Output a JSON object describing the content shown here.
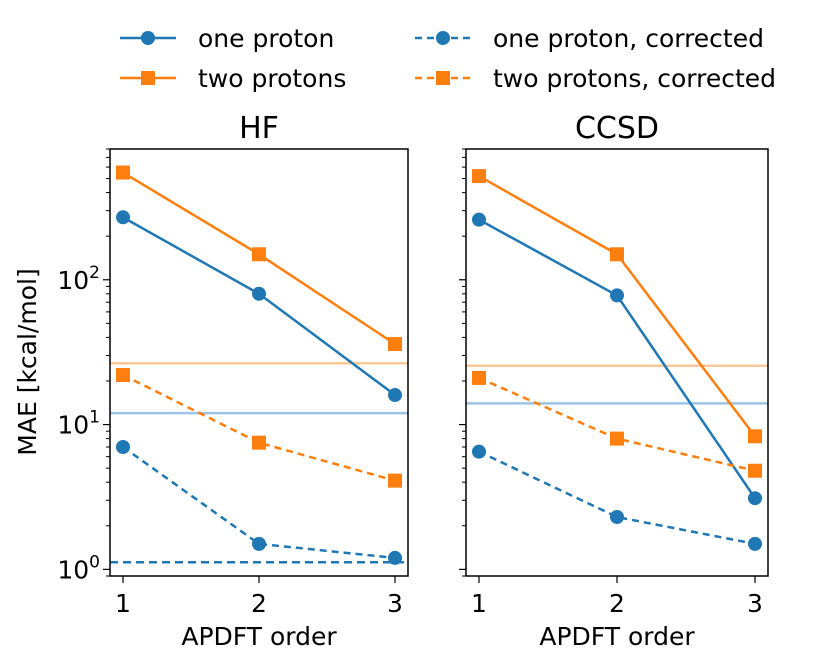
{
  "chart_data": {
    "type": "line",
    "y_scale": "log",
    "ylabel": "MAE [kcal/mol]",
    "xlabel": "APDFT order",
    "x": [
      1,
      2,
      3
    ],
    "x_tick_labels": [
      "1",
      "2",
      "3"
    ],
    "y_ticks": [
      {
        "value": 1,
        "base": "10",
        "exp": "0"
      },
      {
        "value": 10,
        "base": "10",
        "exp": "1"
      },
      {
        "value": 100,
        "base": "10",
        "exp": "2"
      }
    ],
    "ylim": [
      0.9,
      800
    ],
    "legend": {
      "placement": "top",
      "entries": [
        {
          "label": "one proton",
          "series": "one",
          "style": "solid",
          "marker": "circle"
        },
        {
          "label": "two protons",
          "series": "two",
          "style": "solid",
          "marker": "square"
        },
        {
          "label": "one proton, corrected",
          "series": "one",
          "style": "dashed",
          "marker": "circle"
        },
        {
          "label": "two protons, corrected",
          "series": "two",
          "style": "dashed",
          "marker": "square"
        }
      ]
    },
    "colors": {
      "one": "#1f77b4",
      "two": "#ff7f0e",
      "one_ref": "#9dc3e6",
      "two_ref": "#ffc896"
    },
    "panels": [
      {
        "title": "HF",
        "series": [
          {
            "name": "one proton",
            "color_key": "one",
            "style": "solid",
            "marker": "circle",
            "values": [
              270,
              80,
              16
            ]
          },
          {
            "name": "two protons",
            "color_key": "two",
            "style": "solid",
            "marker": "square",
            "values": [
              550,
              150,
              36
            ]
          },
          {
            "name": "one proton, corrected",
            "color_key": "one",
            "style": "dashed",
            "marker": "circle",
            "values": [
              7.0,
              1.5,
              1.2
            ]
          },
          {
            "name": "two protons, corrected",
            "color_key": "two",
            "style": "dashed",
            "marker": "square",
            "values": [
              22,
              7.5,
              4.1
            ]
          }
        ],
        "hlines": [
          {
            "value": 26.5,
            "color_key": "two_ref",
            "style": "solid"
          },
          {
            "value": 12.0,
            "color_key": "one_ref",
            "style": "solid"
          },
          {
            "value": 1.12,
            "color_key": "one",
            "style": "dashed"
          }
        ]
      },
      {
        "title": "CCSD",
        "series": [
          {
            "name": "one proton",
            "color_key": "one",
            "style": "solid",
            "marker": "circle",
            "values": [
              260,
              78,
              3.1
            ]
          },
          {
            "name": "two protons",
            "color_key": "two",
            "style": "solid",
            "marker": "square",
            "values": [
              520,
              150,
              8.3
            ]
          },
          {
            "name": "one proton, corrected",
            "color_key": "one",
            "style": "dashed",
            "marker": "circle",
            "values": [
              6.5,
              2.3,
              1.5
            ]
          },
          {
            "name": "two protons, corrected",
            "color_key": "two",
            "style": "dashed",
            "marker": "square",
            "values": [
              21,
              8.0,
              4.8
            ]
          }
        ],
        "hlines": [
          {
            "value": 25.5,
            "color_key": "two_ref",
            "style": "solid"
          },
          {
            "value": 14.0,
            "color_key": "one_ref",
            "style": "solid"
          }
        ]
      }
    ]
  }
}
